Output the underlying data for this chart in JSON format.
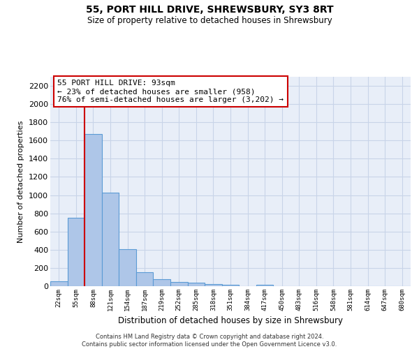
{
  "title1": "55, PORT HILL DRIVE, SHREWSBURY, SY3 8RT",
  "title2": "Size of property relative to detached houses in Shrewsbury",
  "xlabel": "Distribution of detached houses by size in Shrewsbury",
  "ylabel": "Number of detached properties",
  "footer1": "Contains HM Land Registry data © Crown copyright and database right 2024.",
  "footer2": "Contains public sector information licensed under the Open Government Licence v3.0.",
  "annotation_title": "55 PORT HILL DRIVE: 93sqm",
  "annotation_line1": "← 23% of detached houses are smaller (958)",
  "annotation_line2": "76% of semi-detached houses are larger (3,202) →",
  "bar_labels": [
    "22sqm",
    "55sqm",
    "88sqm",
    "121sqm",
    "154sqm",
    "187sqm",
    "219sqm",
    "252sqm",
    "285sqm",
    "318sqm",
    "351sqm",
    "384sqm",
    "417sqm",
    "450sqm",
    "483sqm",
    "516sqm",
    "548sqm",
    "581sqm",
    "614sqm",
    "647sqm",
    "680sqm"
  ],
  "bar_values": [
    50,
    750,
    1670,
    1030,
    405,
    155,
    80,
    45,
    35,
    20,
    15,
    0,
    15,
    0,
    0,
    0,
    0,
    0,
    0,
    0,
    0
  ],
  "bar_color": "#aec6e8",
  "bar_edge_color": "#5b9bd5",
  "ylim": [
    0,
    2300
  ],
  "yticks": [
    0,
    200,
    400,
    600,
    800,
    1000,
    1200,
    1400,
    1600,
    1800,
    2000,
    2200
  ],
  "grid_color": "#c8d4e8",
  "bg_color": "#e8eef8",
  "annotation_box_color": "#ffffff",
  "annotation_box_edge": "#cc0000",
  "vline_color": "#cc0000",
  "vline_x_index": 1.5
}
